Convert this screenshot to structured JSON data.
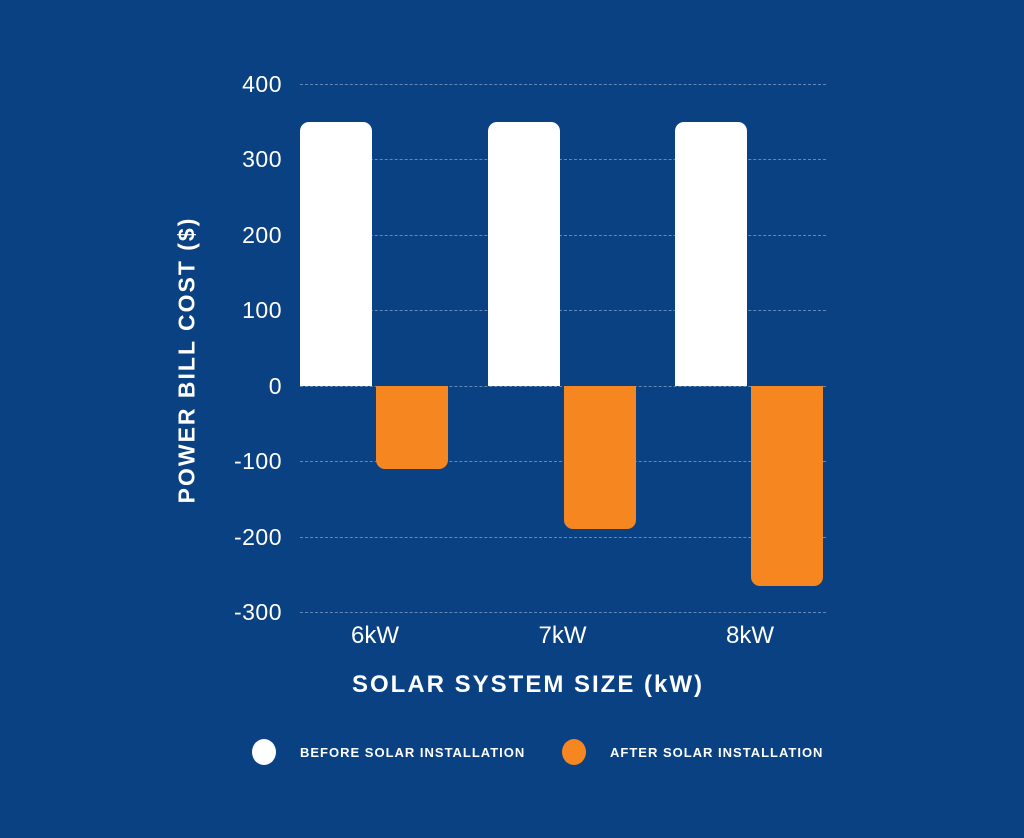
{
  "figure": {
    "background_color": "#0A4183",
    "gridline_color": "rgba(173,196,224,0.55)",
    "text_color": "#FFFFFF"
  },
  "chart_data": {
    "type": "bar",
    "categories": [
      "6kW",
      "7kW",
      "8kW"
    ],
    "series": [
      {
        "name": "BEFORE SOLAR INSTALLATION",
        "color": "#FFFFFF",
        "values": [
          350,
          350,
          350
        ]
      },
      {
        "name": "AFTER SOLAR INSTALLATION",
        "color": "#F6861F",
        "values": [
          -110,
          -190,
          -265
        ]
      }
    ],
    "title": "",
    "xlabel": "SOLAR SYSTEM SIZE (kW)",
    "ylabel": "POWER BILL COST ($)",
    "ylim": [
      -300,
      400
    ],
    "yticks": [
      400,
      300,
      200,
      100,
      0,
      -100,
      -200,
      -300
    ],
    "grid": true,
    "legend_position": "bottom",
    "legend": [
      {
        "label": "BEFORE SOLAR INSTALLATION",
        "color": "#FFFFFF"
      },
      {
        "label": "AFTER SOLAR INSTALLATION",
        "color": "#F6861F"
      }
    ]
  }
}
